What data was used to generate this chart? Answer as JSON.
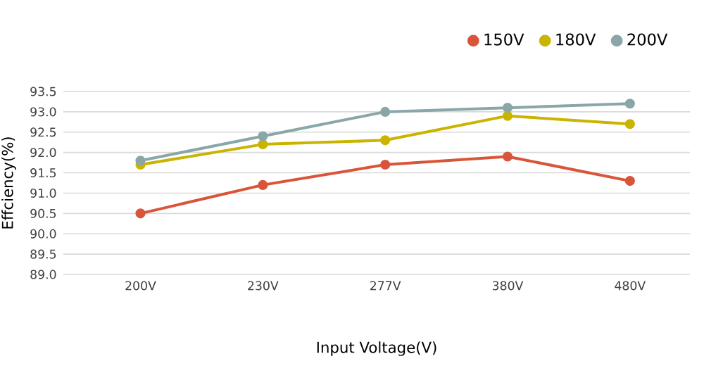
{
  "chart_data": {
    "type": "line",
    "xlabel": "Input Voltage(V)",
    "ylabel": "Effciency(%)",
    "categories": [
      "200V",
      "230V",
      "277V",
      "380V",
      "480V"
    ],
    "series": [
      {
        "name": "150V",
        "color": "#d9553a",
        "values": [
          90.5,
          91.2,
          91.7,
          91.9,
          91.3
        ]
      },
      {
        "name": "180V",
        "color": "#c9b400",
        "values": [
          91.7,
          92.2,
          92.3,
          92.9,
          92.7
        ]
      },
      {
        "name": "200V",
        "color": "#8aa6a6",
        "values": [
          91.8,
          92.4,
          93.0,
          93.1,
          93.2
        ]
      }
    ],
    "ylim": [
      89,
      93.5
    ],
    "yticks": [
      {
        "value": 89,
        "label": "89.0"
      },
      89.5,
      {
        "value": 90,
        "label": "90.0"
      },
      90.5,
      {
        "value": 91,
        "label": "91.0"
      },
      91.5,
      {
        "value": 92,
        "label": "92.0"
      },
      92.5,
      {
        "value": 93,
        "label": "93.0"
      },
      93.5
    ],
    "grid": "y",
    "legend": "top right",
    "marker": "circle",
    "line_style": "solid"
  }
}
